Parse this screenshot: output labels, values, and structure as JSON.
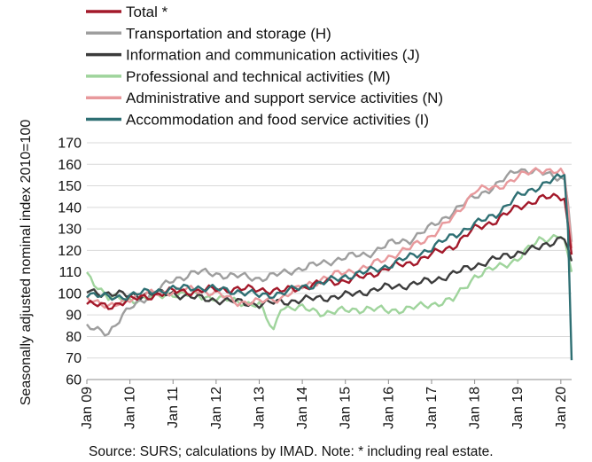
{
  "chart_data": {
    "type": "line",
    "ylabel": "Seasonally adjusted nominal index 2010=100",
    "ylim": [
      60,
      170
    ],
    "y_ticks": [
      60,
      70,
      80,
      90,
      100,
      110,
      120,
      130,
      140,
      150,
      160,
      170
    ],
    "x_tick_labels": [
      "Jan 09",
      "Jan 10",
      "Jan 11",
      "Jan 12",
      "Jan 13",
      "Jan 14",
      "Jan 15",
      "Jan 16",
      "Jan 17",
      "Jan 18",
      "Jan 19",
      "Jan 20"
    ],
    "x_range": [
      "2009-01",
      "2020-04"
    ],
    "grid": "horizontal",
    "legend_position": "top",
    "source_note": "Source:  SURS; calculations by IMAD. Note: * including real estate.",
    "series": [
      {
        "name": "Total *",
        "color": "#a3192a",
        "points": [
          [
            "2009-01",
            95
          ],
          [
            "2009-07",
            94
          ],
          [
            "2010-01",
            97
          ],
          [
            "2010-07",
            99
          ],
          [
            "2011-01",
            101
          ],
          [
            "2011-07",
            101
          ],
          [
            "2012-01",
            102
          ],
          [
            "2012-07",
            102
          ],
          [
            "2013-01",
            102
          ],
          [
            "2013-07",
            101
          ],
          [
            "2014-01",
            103
          ],
          [
            "2014-07",
            105
          ],
          [
            "2015-01",
            106
          ],
          [
            "2015-07",
            108
          ],
          [
            "2016-01",
            112
          ],
          [
            "2016-07",
            114
          ],
          [
            "2017-01",
            118
          ],
          [
            "2017-07",
            122
          ],
          [
            "2018-01",
            130
          ],
          [
            "2018-07",
            134
          ],
          [
            "2019-01",
            140
          ],
          [
            "2019-07",
            144
          ],
          [
            "2020-01",
            145
          ],
          [
            "2020-02",
            144
          ],
          [
            "2020-03",
            132
          ],
          [
            "2020-04",
            118
          ]
        ]
      },
      {
        "name": "Transportation and storage (H)",
        "color": "#9e9e9e",
        "points": [
          [
            "2009-01",
            84
          ],
          [
            "2009-07",
            82
          ],
          [
            "2010-01",
            93
          ],
          [
            "2010-07",
            100
          ],
          [
            "2011-01",
            106
          ],
          [
            "2011-07",
            110
          ],
          [
            "2012-01",
            109
          ],
          [
            "2012-07",
            108
          ],
          [
            "2013-01",
            107
          ],
          [
            "2013-07",
            109
          ],
          [
            "2014-01",
            112
          ],
          [
            "2014-07",
            114
          ],
          [
            "2015-01",
            117
          ],
          [
            "2015-07",
            118
          ],
          [
            "2016-01",
            123
          ],
          [
            "2016-07",
            125
          ],
          [
            "2017-01",
            131
          ],
          [
            "2017-07",
            138
          ],
          [
            "2018-01",
            145
          ],
          [
            "2018-07",
            150
          ],
          [
            "2019-01",
            158
          ],
          [
            "2019-07",
            156
          ],
          [
            "2020-01",
            154
          ],
          [
            "2020-02",
            153
          ],
          [
            "2020-03",
            142
          ],
          [
            "2020-04",
            124
          ]
        ]
      },
      {
        "name": "Information and communication activities (J)",
        "color": "#3c3c3c",
        "points": [
          [
            "2009-01",
            101
          ],
          [
            "2009-07",
            100
          ],
          [
            "2010-01",
            99
          ],
          [
            "2010-07",
            100
          ],
          [
            "2011-01",
            100
          ],
          [
            "2011-07",
            98
          ],
          [
            "2012-01",
            97
          ],
          [
            "2012-07",
            96
          ],
          [
            "2013-01",
            95
          ],
          [
            "2013-07",
            96
          ],
          [
            "2014-01",
            97
          ],
          [
            "2014-07",
            98
          ],
          [
            "2015-01",
            99
          ],
          [
            "2015-07",
            101
          ],
          [
            "2016-01",
            103
          ],
          [
            "2016-07",
            104
          ],
          [
            "2017-01",
            106
          ],
          [
            "2017-07",
            109
          ],
          [
            "2018-01",
            113
          ],
          [
            "2018-07",
            116
          ],
          [
            "2019-01",
            119
          ],
          [
            "2019-07",
            121
          ],
          [
            "2020-01",
            126
          ],
          [
            "2020-02",
            125
          ],
          [
            "2020-03",
            121
          ],
          [
            "2020-04",
            115
          ]
        ]
      },
      {
        "name": "Professional and technical activities (M)",
        "color": "#9fd49c",
        "points": [
          [
            "2009-01",
            109
          ],
          [
            "2009-07",
            98
          ],
          [
            "2010-01",
            97
          ],
          [
            "2010-07",
            98
          ],
          [
            "2011-01",
            100
          ],
          [
            "2011-07",
            99
          ],
          [
            "2012-01",
            98
          ],
          [
            "2012-07",
            96
          ],
          [
            "2013-01",
            95
          ],
          [
            "2013-05",
            82
          ],
          [
            "2013-07",
            94
          ],
          [
            "2014-01",
            93
          ],
          [
            "2014-07",
            91
          ],
          [
            "2015-01",
            92
          ],
          [
            "2015-07",
            93
          ],
          [
            "2016-01",
            92
          ],
          [
            "2016-07",
            93
          ],
          [
            "2017-01",
            95
          ],
          [
            "2017-07",
            97
          ],
          [
            "2018-01",
            108
          ],
          [
            "2018-07",
            112
          ],
          [
            "2019-01",
            116
          ],
          [
            "2019-07",
            125
          ],
          [
            "2020-01",
            127
          ],
          [
            "2020-02",
            125
          ],
          [
            "2020-03",
            118
          ],
          [
            "2020-04",
            110
          ]
        ]
      },
      {
        "name": "Administrative and support service activities (N)",
        "color": "#e8999c",
        "points": [
          [
            "2009-01",
            99
          ],
          [
            "2009-07",
            93
          ],
          [
            "2010-01",
            98
          ],
          [
            "2010-07",
            100
          ],
          [
            "2011-01",
            101
          ],
          [
            "2011-07",
            102
          ],
          [
            "2012-01",
            100
          ],
          [
            "2012-07",
            96
          ],
          [
            "2013-01",
            96
          ],
          [
            "2013-07",
            98
          ],
          [
            "2014-01",
            103
          ],
          [
            "2014-07",
            107
          ],
          [
            "2015-01",
            110
          ],
          [
            "2015-07",
            112
          ],
          [
            "2016-01",
            117
          ],
          [
            "2016-07",
            121
          ],
          [
            "2017-01",
            127
          ],
          [
            "2017-07",
            135
          ],
          [
            "2018-01",
            148
          ],
          [
            "2018-07",
            149
          ],
          [
            "2019-01",
            154
          ],
          [
            "2019-07",
            158
          ],
          [
            "2020-01",
            156
          ],
          [
            "2020-02",
            155
          ],
          [
            "2020-03",
            140
          ],
          [
            "2020-04",
            121
          ]
        ]
      },
      {
        "name": "Accommodation and food service activities (I)",
        "color": "#2e6f73",
        "points": [
          [
            "2009-01",
            100
          ],
          [
            "2009-07",
            98
          ],
          [
            "2010-01",
            99
          ],
          [
            "2010-07",
            101
          ],
          [
            "2011-01",
            102
          ],
          [
            "2011-07",
            103
          ],
          [
            "2012-01",
            102
          ],
          [
            "2012-07",
            101
          ],
          [
            "2013-01",
            99
          ],
          [
            "2013-07",
            100
          ],
          [
            "2014-01",
            103
          ],
          [
            "2014-07",
            105
          ],
          [
            "2015-01",
            108
          ],
          [
            "2015-07",
            110
          ],
          [
            "2016-01",
            113
          ],
          [
            "2016-07",
            117
          ],
          [
            "2017-01",
            121
          ],
          [
            "2017-07",
            127
          ],
          [
            "2018-01",
            132
          ],
          [
            "2018-07",
            137
          ],
          [
            "2019-01",
            145
          ],
          [
            "2019-07",
            150
          ],
          [
            "2020-01",
            154
          ],
          [
            "2020-02",
            155
          ],
          [
            "2020-03",
            130
          ],
          [
            "2020-04",
            69
          ]
        ]
      }
    ]
  }
}
